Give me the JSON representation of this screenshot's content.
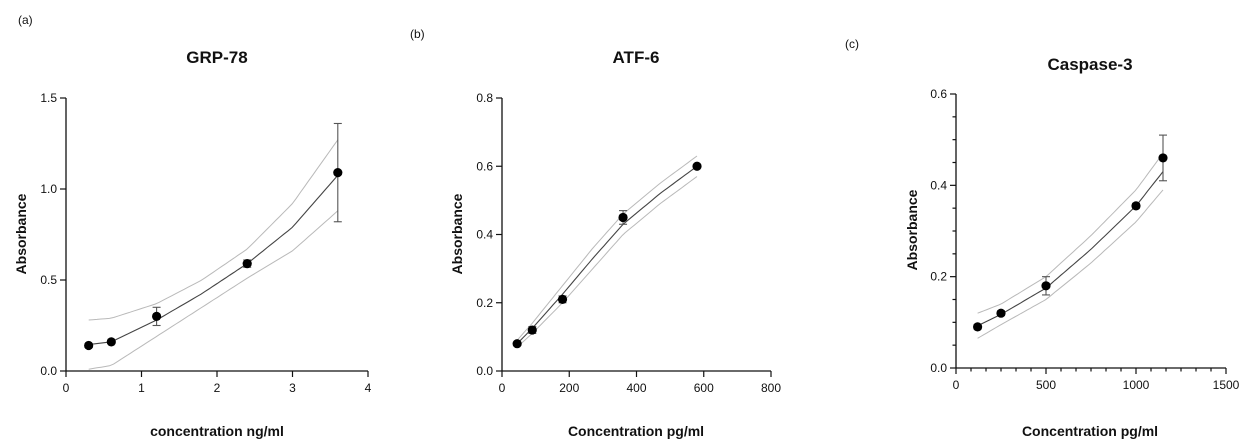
{
  "figure": {
    "panels": [
      {
        "label": "(a)"
      },
      {
        "label": "(b)"
      },
      {
        "label": "(c)"
      }
    ]
  },
  "chart_data": [
    {
      "type": "scatter",
      "panel_label": "(a)",
      "title": "GRP-78",
      "xlabel": "concentration ng/ml",
      "ylabel": "Absorbance",
      "xlim": [
        0,
        4
      ],
      "ylim": [
        0,
        1.5
      ],
      "xticks": [
        "0",
        "1",
        "2",
        "3",
        "4"
      ],
      "yticks": [
        "0.0",
        "0.5",
        "1.0",
        "1.5"
      ],
      "x": [
        0.3,
        0.6,
        1.2,
        2.4,
        3.6
      ],
      "y": [
        0.14,
        0.16,
        0.3,
        0.59,
        1.09
      ],
      "err": [
        0.01,
        0.01,
        0.05,
        0.02,
        0.27
      ],
      "fit_line": true,
      "confidence_band": {
        "x": [
          0.3,
          0.6,
          1.2,
          1.8,
          2.4,
          3.0,
          3.6
        ],
        "upper": [
          0.28,
          0.29,
          0.37,
          0.5,
          0.67,
          0.92,
          1.27
        ],
        "lower": [
          0.01,
          0.03,
          0.19,
          0.35,
          0.51,
          0.66,
          0.88
        ]
      },
      "grid": false
    },
    {
      "type": "scatter",
      "panel_label": "(b)",
      "title": "ATF-6",
      "xlabel": "Concentration pg/ml",
      "ylabel": "Absorbance",
      "xlim": [
        0,
        800
      ],
      "ylim": [
        0,
        0.8
      ],
      "xticks": [
        "0",
        "200",
        "400",
        "600",
        "800"
      ],
      "yticks": [
        "0.0",
        "0.2",
        "0.4",
        "0.6",
        "0.8"
      ],
      "x": [
        45,
        90,
        180,
        360,
        580
      ],
      "y": [
        0.08,
        0.12,
        0.21,
        0.45,
        0.6
      ],
      "err": [
        0.005,
        0.01,
        0.01,
        0.02,
        0.005
      ],
      "fit_line": true,
      "confidence_band": {
        "x": [
          45,
          90,
          180,
          270,
          360,
          470,
          580
        ],
        "upper": [
          0.09,
          0.14,
          0.25,
          0.36,
          0.46,
          0.55,
          0.63
        ],
        "lower": [
          0.07,
          0.11,
          0.2,
          0.3,
          0.4,
          0.49,
          0.57
        ]
      },
      "grid": false
    },
    {
      "type": "scatter",
      "panel_label": "(c)",
      "title": "Caspase-3",
      "xlabel": "Concentration pg/ml",
      "ylabel": "Absorbance",
      "xlim": [
        0,
        1500
      ],
      "ylim": [
        0,
        0.6
      ],
      "xticks": [
        "0",
        "500",
        "1000",
        "1500"
      ],
      "yticks": [
        "0.0",
        "0.2",
        "0.4",
        "0.6"
      ],
      "x": [
        120,
        250,
        500,
        1000,
        1150
      ],
      "y": [
        0.09,
        0.12,
        0.18,
        0.355,
        0.46
      ],
      "err": [
        0.005,
        0.005,
        0.02,
        0.005,
        0.05
      ],
      "fit_line": true,
      "confidence_band": {
        "x": [
          120,
          250,
          500,
          750,
          1000,
          1150
        ],
        "upper": [
          0.12,
          0.14,
          0.2,
          0.29,
          0.39,
          0.47
        ],
        "lower": [
          0.065,
          0.095,
          0.15,
          0.23,
          0.32,
          0.39
        ]
      },
      "grid": false
    }
  ]
}
